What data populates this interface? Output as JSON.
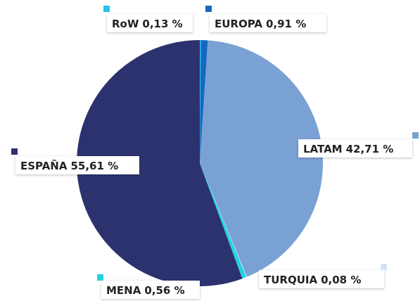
{
  "chart_data": {
    "type": "pie",
    "categories": [
      "RoW",
      "EUROPA",
      "LATAM",
      "TURQUIA",
      "MENA",
      "ESPAÑA"
    ],
    "values": [
      0.13,
      0.91,
      42.71,
      0.08,
      0.56,
      55.61
    ],
    "value_labels": [
      "0,13 %",
      "0,91 %",
      "42,71 %",
      "0,08 %",
      "0,56 %",
      "55,61 %"
    ],
    "colors": [
      "#1fc6e8",
      "#1766c2",
      "#7aa1d3",
      "#d3e2f4",
      "#22d2e4",
      "#2b326e"
    ]
  }
}
